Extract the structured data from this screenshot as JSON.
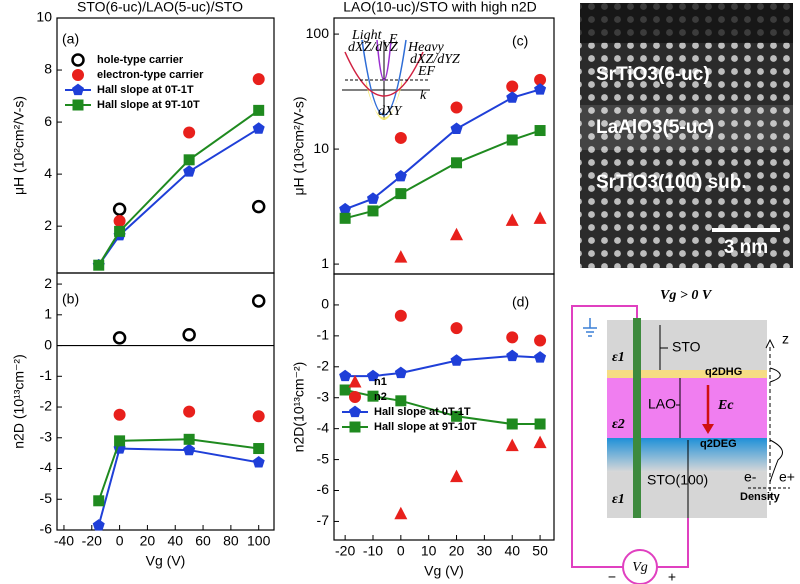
{
  "chart_data": [
    {
      "type": "line",
      "title": "STO(6-uc)/LAO(5-uc)/STO",
      "annotation": "(a)",
      "y_label": "μH (10²cm²/V-s)",
      "xlim": [
        -45,
        111
      ],
      "ylim": [
        0.2,
        10
      ],
      "yticks": [
        2,
        4,
        6,
        8,
        10
      ],
      "legend": "upper left",
      "series": [
        {
          "name": "hole-type carrier",
          "color": "#000000",
          "marker": "circle-open",
          "mode": "markers",
          "x": [
            0,
            100
          ],
          "values": [
            2.65,
            2.75
          ]
        },
        {
          "name": "electron-type carrier",
          "color": "#e8201c",
          "marker": "circle",
          "mode": "markers",
          "x": [
            0,
            50,
            100
          ],
          "values": [
            2.2,
            5.6,
            7.65
          ]
        },
        {
          "name": "Hall slope at 0T-1T",
          "color": "#1f3fd8",
          "marker": "pentagon",
          "mode": "lines+markers",
          "x": [
            -15,
            0,
            50,
            100
          ],
          "values": [
            0.5,
            1.65,
            4.1,
            5.75
          ]
        },
        {
          "name": "Hall slope at 9T-10T",
          "color": "#1f8a1f",
          "marker": "square",
          "mode": "lines+markers",
          "x": [
            -15,
            0,
            50,
            100
          ],
          "values": [
            0.5,
            1.8,
            4.55,
            6.45
          ]
        }
      ]
    },
    {
      "type": "line",
      "annotation": "(b)",
      "y_label": "n2D (10¹³cm⁻²)",
      "x_label": "Vg (V)",
      "xlim": [
        -45,
        111
      ],
      "ylim": [
        -6,
        2.36
      ],
      "xticks": [
        -40,
        -20,
        0,
        20,
        40,
        60,
        80,
        100
      ],
      "yticks": [
        -6,
        -5,
        -4,
        -3,
        -2,
        -1,
        0,
        1,
        2
      ],
      "zero_line": true,
      "series": [
        {
          "color": "#000000",
          "marker": "circle-open",
          "mode": "markers",
          "x": [
            0,
            50,
            100
          ],
          "values": [
            0.25,
            0.35,
            1.45
          ]
        },
        {
          "color": "#e8201c",
          "marker": "circle",
          "mode": "markers",
          "x": [
            0,
            50,
            100
          ],
          "values": [
            -2.25,
            -2.15,
            -2.3
          ]
        },
        {
          "color": "#1f3fd8",
          "marker": "pentagon",
          "mode": "lines+markers",
          "x": [
            -15,
            0,
            50,
            100
          ],
          "values": [
            -5.85,
            -3.35,
            -3.4,
            -3.8
          ]
        },
        {
          "color": "#1f8a1f",
          "marker": "square",
          "mode": "lines+markers",
          "x": [
            -15,
            0,
            50,
            100
          ],
          "values": [
            -5.05,
            -3.1,
            -3.05,
            -3.35
          ]
        }
      ]
    },
    {
      "type": "line",
      "title": "LAO(10-uc)/STO with high n2D",
      "annotation": "(c)",
      "y_label": "μH (10³cm²/V-s)",
      "xlim": [
        -24,
        55
      ],
      "ylim": [
        0.82,
        138
      ],
      "log_y": true,
      "yticks": [
        1,
        10,
        100
      ],
      "inset_labels": [
        "Light",
        "dXZ/dYZ",
        "Heavy",
        "dXZ/dYZ",
        "E",
        "EF",
        "k",
        "dXY"
      ],
      "series": [
        {
          "color": "#e8201c",
          "marker": "circle",
          "mode": "markers",
          "x": [
            0,
            20,
            40,
            50
          ],
          "values": [
            12.5,
            23,
            35,
            40
          ]
        },
        {
          "color": "#e8201c",
          "marker": "triangle",
          "mode": "markers",
          "x": [
            0,
            20,
            40,
            50
          ],
          "values": [
            1.15,
            1.8,
            2.4,
            2.5
          ]
        },
        {
          "color": "#1f3fd8",
          "marker": "pentagon",
          "mode": "lines+markers",
          "x": [
            -20,
            -10,
            0,
            20,
            40,
            50
          ],
          "values": [
            3.0,
            3.7,
            5.8,
            15,
            28,
            33
          ]
        },
        {
          "color": "#1f8a1f",
          "marker": "square",
          "mode": "lines+markers",
          "x": [
            -20,
            -10,
            0,
            20,
            40,
            50
          ],
          "values": [
            2.5,
            2.9,
            4.1,
            7.6,
            12,
            14.5
          ]
        }
      ]
    },
    {
      "type": "line",
      "annotation": "(d)",
      "y_label": "n2D(10¹³cm⁻²)",
      "x_label": "Vg (V)",
      "xlim": [
        -24,
        55
      ],
      "ylim": [
        -7.6,
        1.0
      ],
      "xticks": [
        -20,
        -10,
        0,
        10,
        20,
        30,
        40,
        50
      ],
      "yticks": [
        -7,
        -6,
        -5,
        -4,
        -3,
        -2,
        -1,
        0
      ],
      "legend": "lower left",
      "series": [
        {
          "name": "n1",
          "color": "#e8201c",
          "marker": "triangle",
          "mode": "markers",
          "x": [
            0,
            20,
            40,
            50
          ],
          "values": [
            -6.75,
            -5.55,
            -4.55,
            -4.45
          ]
        },
        {
          "name": "n2",
          "color": "#e8201c",
          "marker": "circle",
          "mode": "markers",
          "x": [
            0,
            20,
            40,
            50
          ],
          "values": [
            -0.35,
            -0.75,
            -1.05,
            -1.15
          ]
        },
        {
          "name": "Hall slope at 0T-1T",
          "color": "#1f3fd8",
          "marker": "pentagon",
          "mode": "lines+markers",
          "x": [
            -20,
            -10,
            0,
            20,
            40,
            50
          ],
          "values": [
            -2.3,
            -2.3,
            -2.2,
            -1.8,
            -1.65,
            -1.7
          ]
        },
        {
          "name": "Hall slope at 9T-10T",
          "color": "#1f8a1f",
          "marker": "square",
          "mode": "lines+markers",
          "x": [
            -20,
            -10,
            0,
            20,
            40,
            50
          ],
          "values": [
            -2.75,
            -2.95,
            -3.1,
            -3.6,
            -3.85,
            -3.85
          ]
        }
      ]
    }
  ],
  "image": {
    "labels": [
      "SrTiO3(6-uc)",
      "LaAlO3(5-uc)",
      "SrTiO3(100) sub."
    ],
    "scale_bar": "3 nm"
  },
  "diagram": {
    "title": "Vg > 0 V",
    "layers": [
      "STO",
      "LAO",
      "STO(100)"
    ],
    "interfaces": [
      "q2DHG",
      "q2DEG"
    ],
    "field": "Ec",
    "axis": "z",
    "carriers": [
      "e-",
      "e+"
    ],
    "density": "Density",
    "permittivity": [
      "ε1",
      "ε2",
      "ε1"
    ],
    "source": "Vg",
    "polarity": [
      "−",
      "+"
    ]
  }
}
